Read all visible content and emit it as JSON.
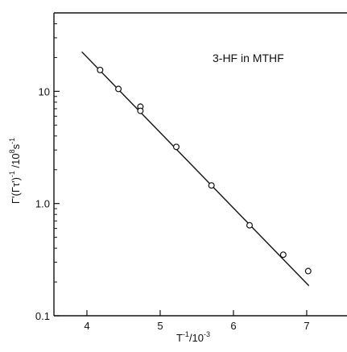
{
  "chart_data": {
    "type": "scatter",
    "title": "",
    "annotation": "3-HF in MTHF",
    "xlabel": {
      "base": "T",
      "sup1": "-1",
      "mid": "/10",
      "sup2": "-3"
    },
    "ylabel": {
      "p1": "Γ'(Γτ')",
      "sup1": "-1",
      "p2": " /10",
      "sup2": "8",
      "p3": "s",
      "sup3": "-1"
    },
    "xlim": [
      3.55,
      7.55
    ],
    "ylim": [
      0.1,
      50
    ],
    "yscale": "log",
    "xticks": [
      4,
      5,
      6,
      7
    ],
    "xtick_labels": [
      "4",
      "5",
      "6",
      "7"
    ],
    "yticks": [
      0.1,
      1.0,
      10
    ],
    "ytick_labels": [
      "0.1",
      "1.0",
      "10"
    ],
    "grid": false,
    "series": [
      {
        "marker": "open-circle",
        "x": [
          4.18,
          4.43,
          4.73,
          4.73,
          5.22,
          5.7,
          6.22,
          6.68,
          7.02
        ],
        "y": [
          15.5,
          10.5,
          7.3,
          6.7,
          3.2,
          1.45,
          0.64,
          0.35,
          0.25
        ]
      }
    ],
    "fit_line": {
      "x": [
        3.93,
        7.03
      ],
      "y": [
        22.5,
        0.185
      ]
    }
  }
}
